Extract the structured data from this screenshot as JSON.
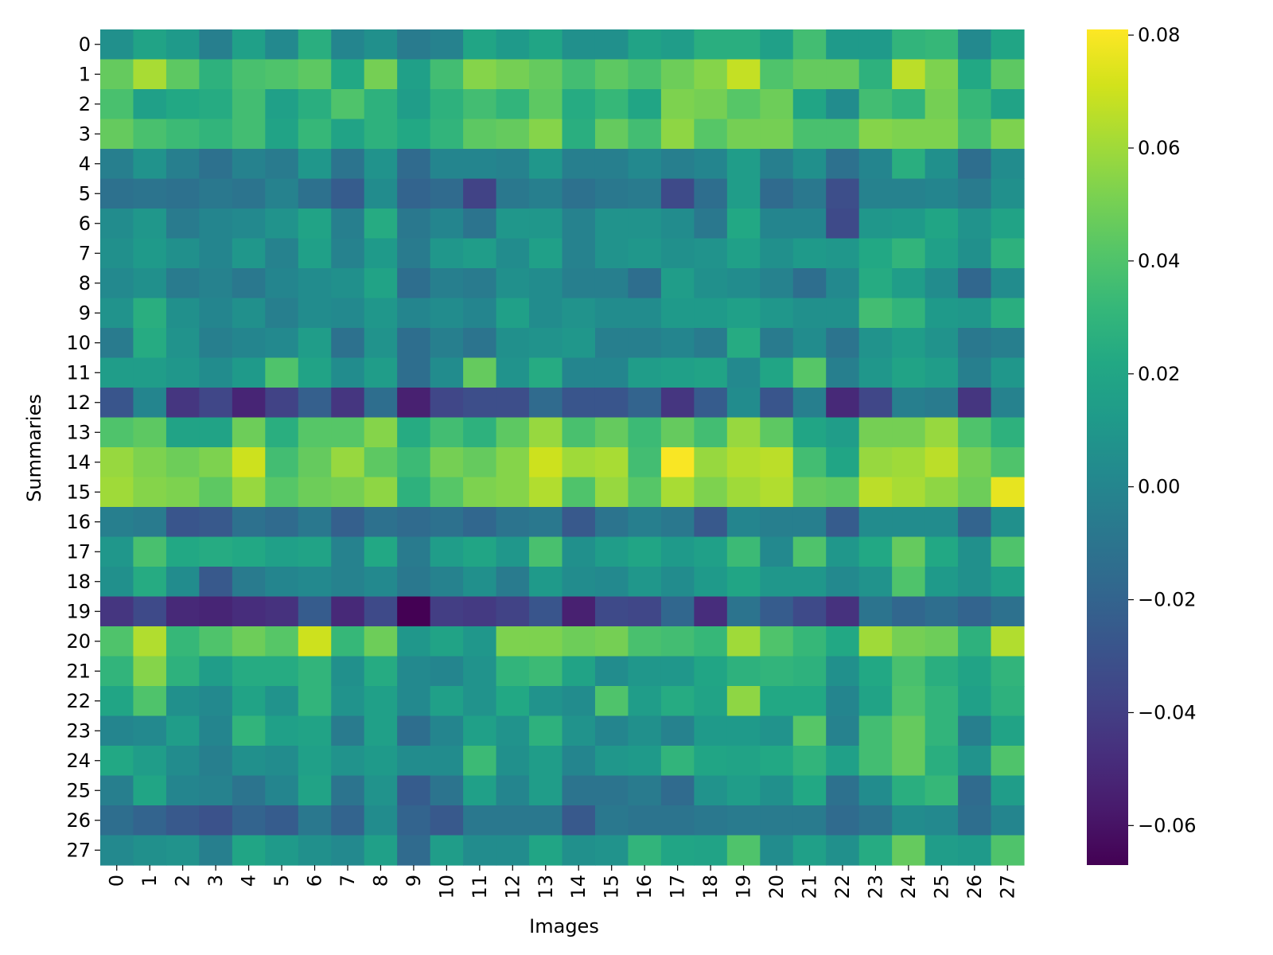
{
  "chart_data": {
    "type": "heatmap",
    "title": "",
    "xlabel": "Images",
    "ylabel": "Summaries",
    "x_categories": [
      "0",
      "1",
      "2",
      "3",
      "4",
      "5",
      "6",
      "7",
      "8",
      "9",
      "10",
      "11",
      "12",
      "13",
      "14",
      "15",
      "16",
      "17",
      "18",
      "19",
      "20",
      "21",
      "22",
      "23",
      "24",
      "25",
      "26",
      "27"
    ],
    "y_categories": [
      "0",
      "1",
      "2",
      "3",
      "4",
      "5",
      "6",
      "7",
      "8",
      "9",
      "10",
      "11",
      "12",
      "13",
      "14",
      "15",
      "16",
      "17",
      "18",
      "19",
      "20",
      "21",
      "22",
      "23",
      "24",
      "25",
      "26",
      "27"
    ],
    "colormap": "viridis",
    "vmin": -0.067,
    "vmax": 0.081,
    "colorbar_ticks": [
      0.08,
      0.06,
      0.04,
      0.02,
      0.0,
      -0.02,
      -0.04,
      -0.06
    ],
    "colorbar_tick_labels": [
      "0.08",
      "0.06",
      "0.04",
      "0.02",
      "0.00",
      "−0.02",
      "−0.04",
      "−0.06"
    ],
    "values": [
      [
        0.006,
        0.018,
        0.012,
        -0.004,
        0.016,
        0.002,
        0.026,
        0.0,
        0.006,
        -0.006,
        -0.002,
        0.02,
        0.012,
        0.02,
        0.006,
        0.006,
        0.018,
        0.014,
        0.026,
        0.026,
        0.016,
        0.036,
        0.012,
        0.012,
        0.03,
        0.032,
        0.002,
        0.02
      ],
      [
        0.046,
        0.062,
        0.044,
        0.028,
        0.038,
        0.04,
        0.044,
        0.022,
        0.05,
        0.016,
        0.036,
        0.054,
        0.05,
        0.046,
        0.036,
        0.044,
        0.038,
        0.048,
        0.054,
        0.068,
        0.04,
        0.046,
        0.046,
        0.028,
        0.066,
        0.052,
        0.022,
        0.044
      ],
      [
        0.038,
        0.016,
        0.022,
        0.024,
        0.036,
        0.016,
        0.026,
        0.04,
        0.028,
        0.014,
        0.028,
        0.036,
        0.03,
        0.044,
        0.024,
        0.032,
        0.02,
        0.052,
        0.05,
        0.042,
        0.048,
        0.02,
        0.004,
        0.036,
        0.03,
        0.05,
        0.032,
        0.018
      ],
      [
        0.046,
        0.038,
        0.034,
        0.03,
        0.036,
        0.018,
        0.032,
        0.018,
        0.028,
        0.022,
        0.03,
        0.044,
        0.046,
        0.054,
        0.026,
        0.046,
        0.036,
        0.056,
        0.042,
        0.05,
        0.05,
        0.038,
        0.038,
        0.054,
        0.052,
        0.052,
        0.036,
        0.052
      ],
      [
        -0.004,
        0.008,
        -0.004,
        -0.012,
        -0.002,
        -0.006,
        0.01,
        -0.01,
        0.008,
        -0.016,
        0.0,
        0.0,
        -0.002,
        0.01,
        -0.004,
        -0.004,
        0.002,
        -0.004,
        0.0,
        0.014,
        -0.004,
        0.006,
        -0.012,
        0.0,
        0.026,
        0.006,
        -0.014,
        0.004
      ],
      [
        -0.012,
        -0.01,
        -0.012,
        -0.008,
        -0.01,
        -0.002,
        -0.012,
        -0.024,
        0.004,
        -0.02,
        -0.016,
        -0.038,
        -0.008,
        -0.004,
        -0.012,
        -0.008,
        -0.006,
        -0.034,
        -0.014,
        0.014,
        -0.016,
        -0.008,
        -0.032,
        -0.002,
        -0.002,
        0.0,
        -0.006,
        0.006
      ],
      [
        0.004,
        0.01,
        -0.006,
        0.0,
        0.002,
        0.008,
        0.018,
        -0.004,
        0.024,
        -0.008,
        0.0,
        -0.01,
        0.01,
        0.01,
        -0.002,
        0.008,
        0.008,
        0.004,
        -0.008,
        0.022,
        0.0,
        0.0,
        -0.034,
        0.01,
        0.012,
        0.02,
        0.008,
        0.018
      ],
      [
        0.006,
        0.012,
        0.006,
        0.0,
        0.01,
        -0.002,
        0.016,
        -0.002,
        0.012,
        -0.006,
        0.01,
        0.014,
        0.004,
        0.016,
        -0.002,
        0.008,
        0.01,
        0.006,
        0.008,
        0.016,
        0.006,
        0.012,
        0.01,
        0.022,
        0.03,
        0.016,
        0.006,
        0.028
      ],
      [
        0.002,
        0.006,
        -0.006,
        -0.002,
        -0.008,
        0.0,
        0.004,
        0.006,
        0.018,
        -0.014,
        -0.004,
        -0.006,
        0.006,
        0.004,
        -0.004,
        -0.004,
        -0.014,
        0.014,
        0.006,
        0.004,
        -0.002,
        -0.014,
        0.002,
        0.024,
        0.014,
        0.004,
        -0.018,
        0.004
      ],
      [
        0.008,
        0.026,
        0.006,
        0.0,
        0.006,
        -0.004,
        0.004,
        0.002,
        0.01,
        0.0,
        0.004,
        0.0,
        0.016,
        0.004,
        0.008,
        0.004,
        0.004,
        0.012,
        0.012,
        0.016,
        0.01,
        0.006,
        0.006,
        0.036,
        0.03,
        0.012,
        0.01,
        0.026
      ],
      [
        -0.006,
        0.024,
        0.008,
        -0.004,
        0.0,
        0.002,
        0.014,
        -0.012,
        0.008,
        -0.014,
        -0.004,
        -0.01,
        0.006,
        0.008,
        0.01,
        -0.004,
        -0.004,
        0.0,
        -0.006,
        0.024,
        -0.006,
        0.004,
        -0.01,
        0.008,
        0.014,
        0.008,
        -0.008,
        -0.004
      ],
      [
        0.014,
        0.014,
        0.01,
        0.004,
        0.012,
        0.04,
        0.018,
        0.004,
        0.014,
        -0.014,
        0.004,
        0.046,
        0.008,
        0.024,
        0.0,
        0.0,
        0.014,
        0.016,
        0.018,
        0.002,
        0.02,
        0.042,
        -0.004,
        0.01,
        0.018,
        0.014,
        -0.004,
        0.01
      ],
      [
        -0.028,
        0.0,
        -0.044,
        -0.036,
        -0.052,
        -0.038,
        -0.022,
        -0.044,
        -0.014,
        -0.054,
        -0.036,
        -0.032,
        -0.032,
        -0.016,
        -0.028,
        -0.028,
        -0.02,
        -0.044,
        -0.024,
        0.004,
        -0.028,
        -0.004,
        -0.05,
        -0.036,
        -0.004,
        -0.006,
        -0.044,
        -0.002
      ],
      [
        0.04,
        0.044,
        0.018,
        0.018,
        0.048,
        0.026,
        0.042,
        0.042,
        0.054,
        0.024,
        0.036,
        0.028,
        0.044,
        0.058,
        0.038,
        0.046,
        0.034,
        0.046,
        0.036,
        0.058,
        0.044,
        0.02,
        0.014,
        0.05,
        0.05,
        0.058,
        0.04,
        0.028
      ],
      [
        0.058,
        0.052,
        0.048,
        0.052,
        0.07,
        0.036,
        0.046,
        0.058,
        0.044,
        0.034,
        0.05,
        0.046,
        0.054,
        0.07,
        0.06,
        0.062,
        0.036,
        0.08,
        0.058,
        0.064,
        0.066,
        0.036,
        0.02,
        0.058,
        0.06,
        0.066,
        0.05,
        0.04
      ],
      [
        0.06,
        0.054,
        0.052,
        0.044,
        0.058,
        0.042,
        0.048,
        0.05,
        0.056,
        0.028,
        0.042,
        0.052,
        0.054,
        0.064,
        0.04,
        0.058,
        0.042,
        0.062,
        0.052,
        0.06,
        0.064,
        0.046,
        0.044,
        0.066,
        0.062,
        0.056,
        0.048,
        0.076
      ],
      [
        -0.004,
        -0.006,
        -0.028,
        -0.026,
        -0.012,
        -0.016,
        -0.008,
        -0.022,
        -0.012,
        -0.016,
        -0.012,
        -0.018,
        -0.01,
        -0.008,
        -0.026,
        -0.01,
        -0.004,
        -0.008,
        -0.026,
        0.0,
        -0.004,
        -0.004,
        -0.024,
        0.004,
        0.004,
        0.004,
        -0.02,
        0.006
      ],
      [
        0.01,
        0.038,
        0.022,
        0.024,
        0.022,
        0.016,
        0.018,
        -0.002,
        0.022,
        -0.006,
        0.014,
        0.02,
        0.01,
        0.038,
        0.006,
        0.014,
        0.02,
        0.012,
        0.016,
        0.034,
        0.002,
        0.04,
        0.01,
        0.022,
        0.046,
        0.022,
        0.006,
        0.04
      ],
      [
        0.006,
        0.024,
        0.004,
        -0.026,
        -0.006,
        0.0,
        0.002,
        -0.002,
        0.002,
        -0.008,
        -0.002,
        0.006,
        -0.006,
        0.012,
        0.004,
        0.002,
        0.01,
        0.004,
        0.012,
        0.02,
        0.01,
        0.01,
        0.002,
        0.008,
        0.04,
        0.012,
        0.006,
        0.016
      ],
      [
        -0.044,
        -0.034,
        -0.05,
        -0.052,
        -0.048,
        -0.046,
        -0.024,
        -0.05,
        -0.034,
        -0.067,
        -0.04,
        -0.042,
        -0.038,
        -0.028,
        -0.054,
        -0.034,
        -0.036,
        -0.018,
        -0.048,
        -0.01,
        -0.024,
        -0.034,
        -0.046,
        -0.01,
        -0.018,
        -0.014,
        -0.02,
        -0.012
      ],
      [
        0.04,
        0.064,
        0.032,
        0.04,
        0.048,
        0.042,
        0.07,
        0.032,
        0.048,
        0.01,
        0.018,
        0.01,
        0.052,
        0.052,
        0.048,
        0.05,
        0.038,
        0.036,
        0.032,
        0.06,
        0.04,
        0.032,
        0.022,
        0.06,
        0.05,
        0.048,
        0.028,
        0.064
      ],
      [
        0.03,
        0.054,
        0.028,
        0.014,
        0.024,
        0.024,
        0.03,
        0.006,
        0.024,
        0.002,
        0.0,
        0.008,
        0.03,
        0.034,
        0.018,
        0.004,
        0.01,
        0.01,
        0.02,
        0.028,
        0.03,
        0.028,
        0.006,
        0.022,
        0.038,
        0.026,
        0.018,
        0.03
      ],
      [
        0.02,
        0.04,
        0.006,
        0.002,
        0.018,
        0.008,
        0.03,
        0.008,
        0.016,
        0.002,
        0.016,
        0.008,
        0.022,
        0.008,
        0.004,
        0.04,
        0.014,
        0.024,
        0.018,
        0.056,
        0.022,
        0.022,
        0.0,
        0.018,
        0.04,
        0.03,
        0.016,
        0.028
      ],
      [
        0.0,
        0.002,
        0.014,
        0.0,
        0.03,
        0.016,
        0.018,
        -0.006,
        0.016,
        -0.014,
        0.0,
        0.016,
        0.008,
        0.028,
        0.008,
        0.0,
        0.006,
        -0.002,
        0.012,
        0.012,
        0.008,
        0.042,
        -0.002,
        0.036,
        0.046,
        0.03,
        -0.004,
        0.018
      ],
      [
        0.022,
        0.014,
        0.004,
        -0.004,
        0.006,
        0.004,
        0.016,
        0.008,
        0.012,
        0.004,
        0.004,
        0.034,
        0.006,
        0.014,
        0.0,
        0.01,
        0.012,
        0.03,
        0.02,
        0.018,
        0.022,
        0.03,
        0.016,
        0.036,
        0.046,
        0.026,
        0.008,
        0.04
      ],
      [
        -0.004,
        0.02,
        0.0,
        -0.002,
        -0.01,
        0.0,
        0.018,
        -0.01,
        0.008,
        -0.024,
        -0.01,
        0.016,
        0.0,
        0.014,
        -0.01,
        -0.01,
        -0.006,
        -0.016,
        0.008,
        0.014,
        0.006,
        0.022,
        -0.012,
        0.004,
        0.026,
        0.032,
        -0.016,
        0.014
      ],
      [
        -0.014,
        -0.02,
        -0.026,
        -0.03,
        -0.02,
        -0.024,
        -0.008,
        -0.02,
        0.004,
        -0.02,
        -0.026,
        -0.008,
        -0.008,
        -0.008,
        -0.026,
        -0.008,
        -0.01,
        -0.01,
        -0.008,
        -0.006,
        -0.006,
        -0.006,
        -0.016,
        -0.01,
        0.004,
        0.002,
        -0.014,
        0.0
      ],
      [
        0.002,
        0.006,
        0.008,
        -0.004,
        0.02,
        0.012,
        0.006,
        0.002,
        0.016,
        -0.016,
        0.014,
        0.004,
        0.004,
        0.02,
        0.006,
        0.008,
        0.03,
        0.02,
        0.018,
        0.04,
        0.004,
        0.016,
        0.006,
        0.024,
        0.046,
        0.014,
        0.012,
        0.04
      ]
    ]
  }
}
